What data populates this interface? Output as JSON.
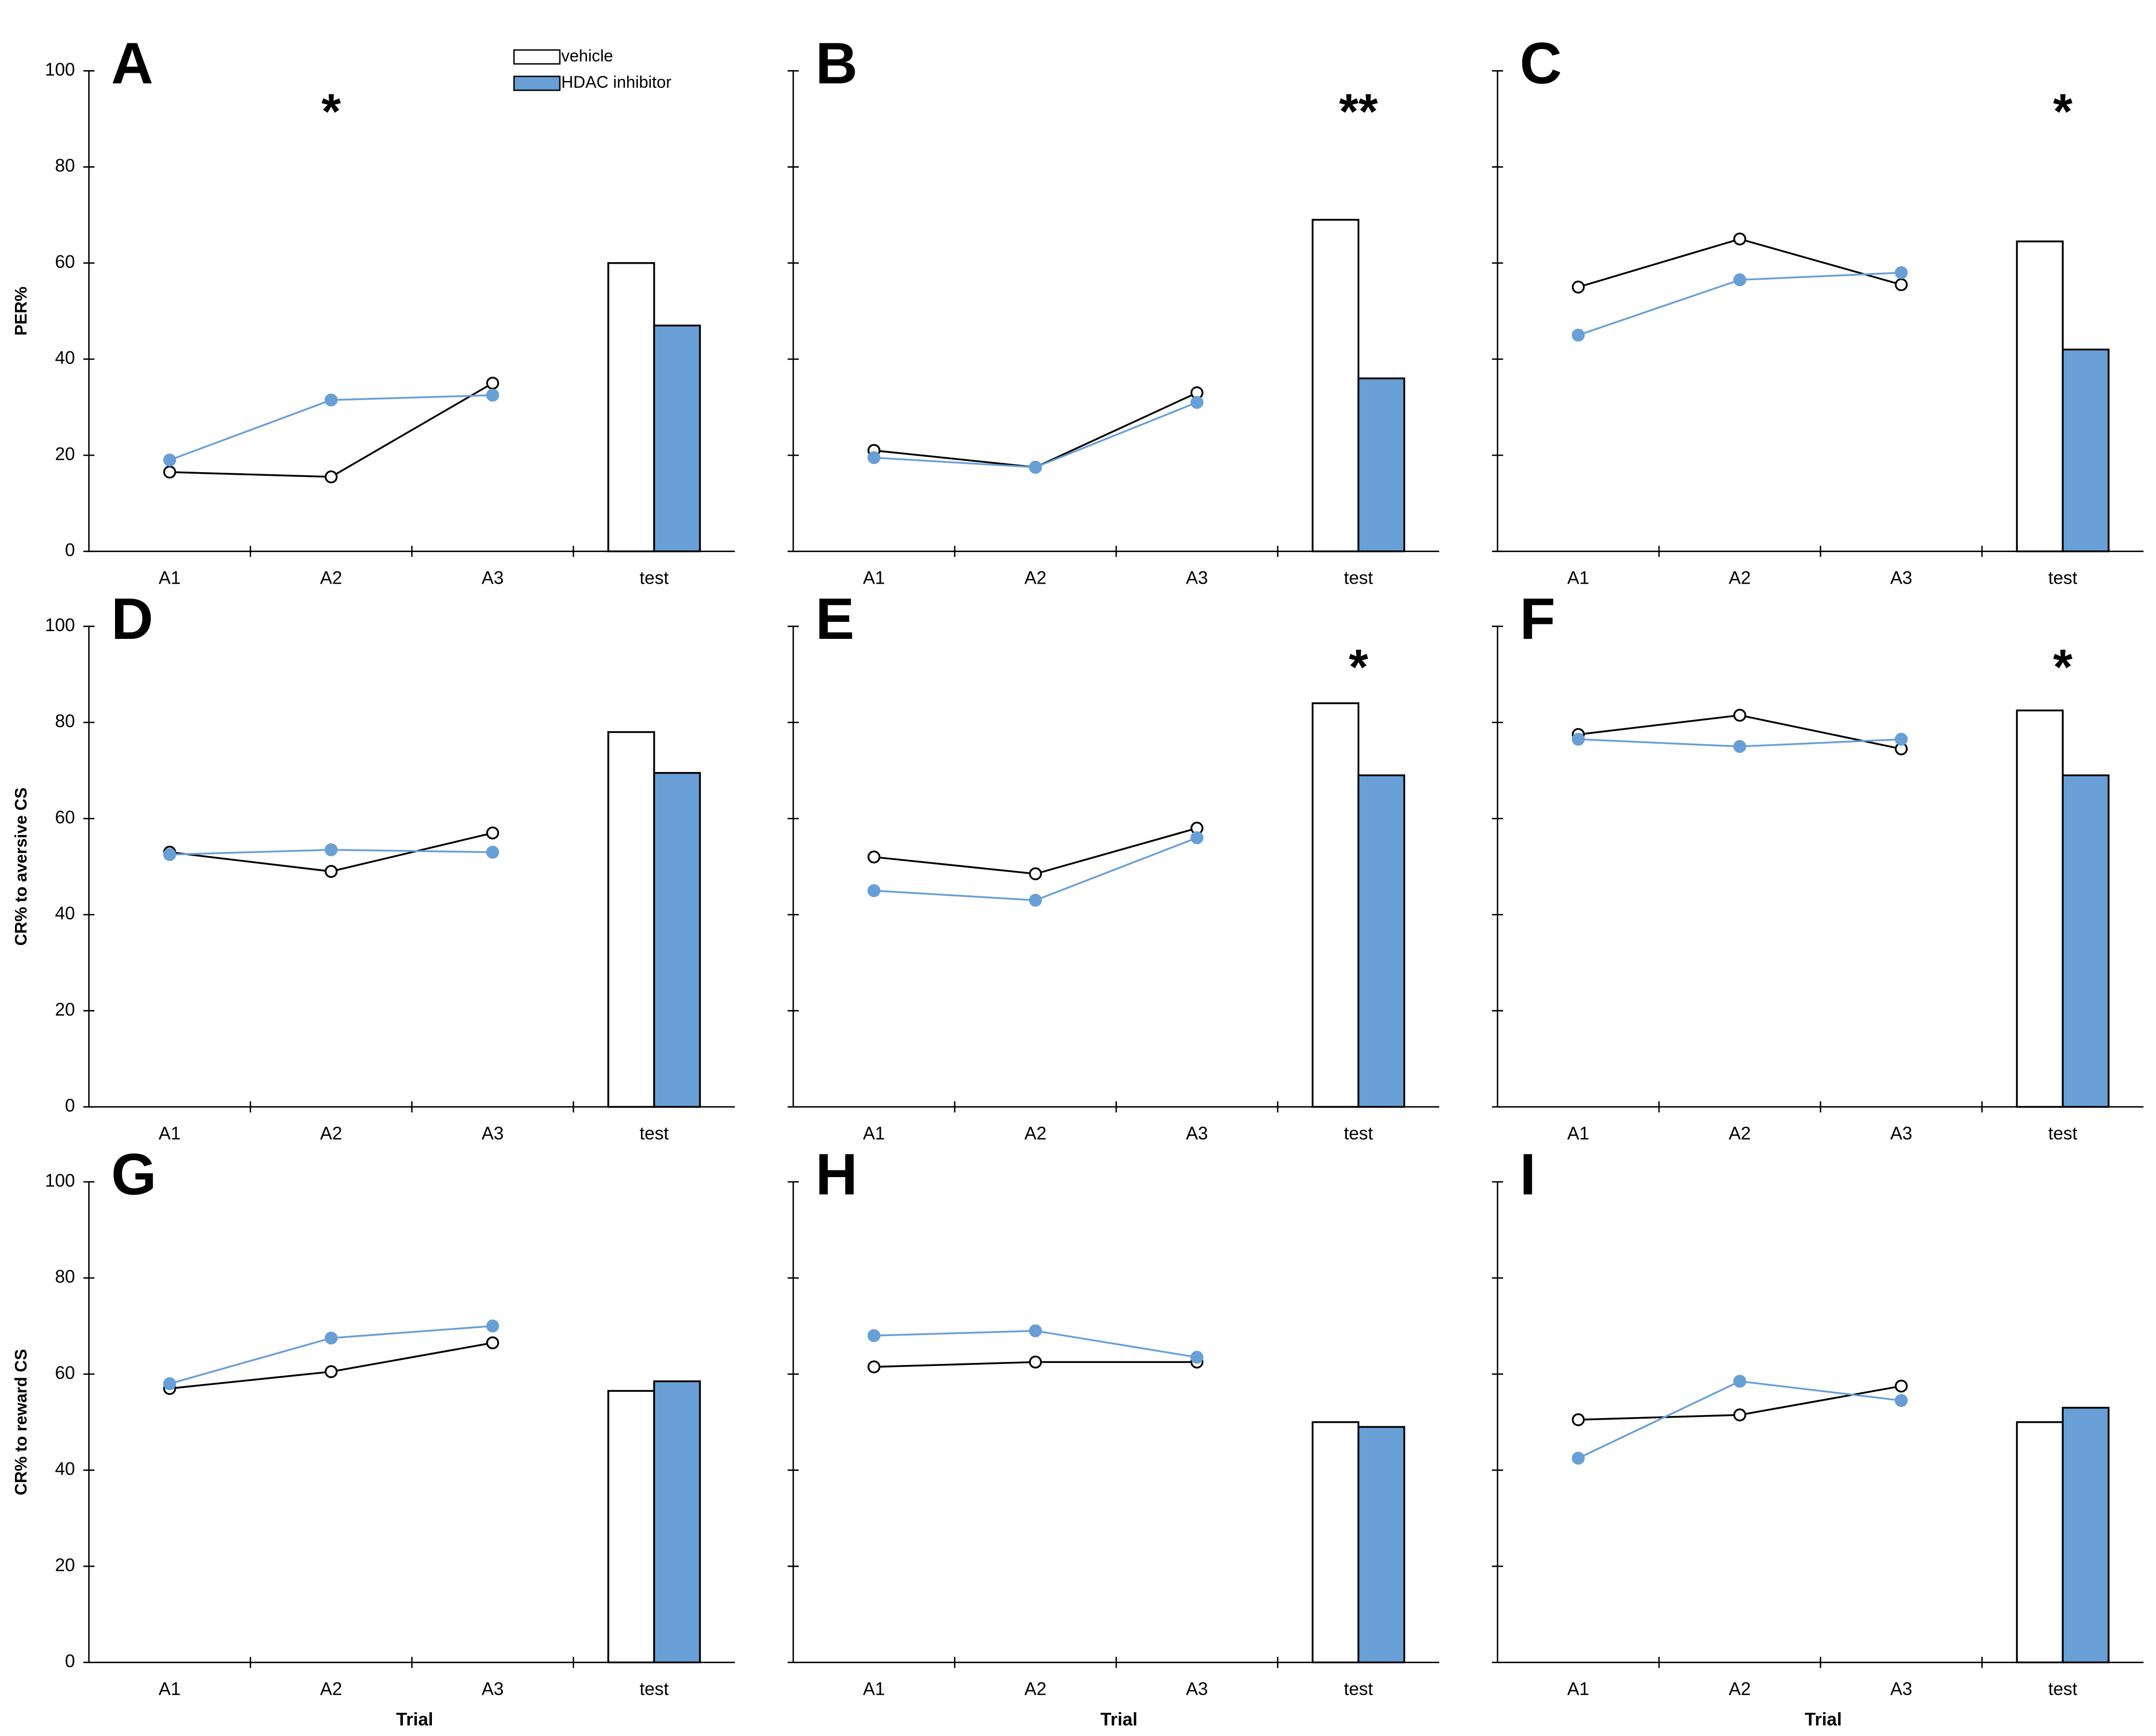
{
  "chart_data": [
    {
      "type": "combo",
      "panel_label": "A",
      "ylabel": "PER%",
      "categories": [
        "A1",
        "A2",
        "A3",
        "test"
      ],
      "ylim": [
        0,
        100
      ],
      "yticks": [
        0,
        20,
        40,
        60,
        80,
        100
      ],
      "show_ytick_labels": true,
      "legend": true,
      "series": [
        {
          "name": "vehicle",
          "color": "#000000",
          "values": [
            16.5,
            15.5,
            35,
            60
          ]
        },
        {
          "name": "HDAC inhibitor",
          "color": "#689fd6",
          "values": [
            19,
            31.5,
            32.5,
            47
          ]
        }
      ],
      "annotations": [
        {
          "text": "*",
          "category": "A2"
        }
      ]
    },
    {
      "type": "combo",
      "panel_label": "B",
      "categories": [
        "A1",
        "A2",
        "A3",
        "test"
      ],
      "ylim": [
        0,
        100
      ],
      "yticks": [
        0,
        20,
        40,
        60,
        80,
        100
      ],
      "show_ytick_labels": false,
      "series": [
        {
          "name": "vehicle",
          "color": "#000000",
          "values": [
            21,
            17.5,
            33,
            69
          ]
        },
        {
          "name": "HDAC inhibitor",
          "color": "#689fd6",
          "values": [
            19.5,
            17.5,
            31,
            36
          ]
        }
      ],
      "annotations": [
        {
          "text": "**",
          "category": "test"
        }
      ]
    },
    {
      "type": "combo",
      "panel_label": "C",
      "categories": [
        "A1",
        "A2",
        "A3",
        "test"
      ],
      "ylim": [
        0,
        100
      ],
      "yticks": [
        0,
        20,
        40,
        60,
        80,
        100
      ],
      "show_ytick_labels": false,
      "series": [
        {
          "name": "vehicle",
          "color": "#000000",
          "values": [
            55,
            65,
            55.5,
            64.5
          ]
        },
        {
          "name": "HDAC inhibitor",
          "color": "#689fd6",
          "values": [
            45,
            56.5,
            58,
            42
          ]
        }
      ],
      "annotations": [
        {
          "text": "*",
          "category": "test"
        }
      ]
    },
    {
      "type": "combo",
      "panel_label": "D",
      "ylabel": "CR% to aversive CS",
      "categories": [
        "A1",
        "A2",
        "A3",
        "test"
      ],
      "ylim": [
        0,
        100
      ],
      "yticks": [
        0,
        20,
        40,
        60,
        80,
        100
      ],
      "show_ytick_labels": true,
      "series": [
        {
          "name": "vehicle",
          "color": "#000000",
          "values": [
            53,
            49,
            57,
            78
          ]
        },
        {
          "name": "HDAC inhibitor",
          "color": "#689fd6",
          "values": [
            52.5,
            53.5,
            53,
            69.5
          ]
        }
      ]
    },
    {
      "type": "combo",
      "panel_label": "E",
      "categories": [
        "A1",
        "A2",
        "A3",
        "test"
      ],
      "ylim": [
        0,
        100
      ],
      "yticks": [
        0,
        20,
        40,
        60,
        80,
        100
      ],
      "show_ytick_labels": false,
      "series": [
        {
          "name": "vehicle",
          "color": "#000000",
          "values": [
            52,
            48.5,
            58,
            84
          ]
        },
        {
          "name": "HDAC inhibitor",
          "color": "#689fd6",
          "values": [
            45,
            43,
            56,
            69
          ]
        }
      ],
      "annotations": [
        {
          "text": "*",
          "category": "test"
        }
      ]
    },
    {
      "type": "combo",
      "panel_label": "F",
      "categories": [
        "A1",
        "A2",
        "A3",
        "test"
      ],
      "ylim": [
        0,
        100
      ],
      "yticks": [
        0,
        20,
        40,
        60,
        80,
        100
      ],
      "show_ytick_labels": false,
      "series": [
        {
          "name": "vehicle",
          "color": "#000000",
          "values": [
            77.5,
            81.5,
            74.5,
            82.5
          ]
        },
        {
          "name": "HDAC inhibitor",
          "color": "#689fd6",
          "values": [
            76.5,
            75,
            76.5,
            69
          ]
        }
      ],
      "annotations": [
        {
          "text": "*",
          "category": "test"
        }
      ]
    },
    {
      "type": "combo",
      "panel_label": "G",
      "ylabel": "CR% to reward CS",
      "xlabel": "Trial",
      "categories": [
        "A1",
        "A2",
        "A3",
        "test"
      ],
      "ylim": [
        0,
        100
      ],
      "yticks": [
        0,
        20,
        40,
        60,
        80,
        100
      ],
      "show_ytick_labels": true,
      "series": [
        {
          "name": "vehicle",
          "color": "#000000",
          "values": [
            57,
            60.5,
            66.5,
            56.5
          ]
        },
        {
          "name": "HDAC inhibitor",
          "color": "#689fd6",
          "values": [
            58,
            67.5,
            70,
            58.5
          ]
        }
      ]
    },
    {
      "type": "combo",
      "panel_label": "H",
      "xlabel": "Trial",
      "categories": [
        "A1",
        "A2",
        "A3",
        "test"
      ],
      "ylim": [
        0,
        100
      ],
      "yticks": [
        0,
        20,
        40,
        60,
        80,
        100
      ],
      "show_ytick_labels": false,
      "series": [
        {
          "name": "vehicle",
          "color": "#000000",
          "values": [
            61.5,
            62.5,
            62.5,
            50
          ]
        },
        {
          "name": "HDAC inhibitor",
          "color": "#689fd6",
          "values": [
            68,
            69,
            63.5,
            49
          ]
        }
      ]
    },
    {
      "type": "combo",
      "panel_label": "I",
      "xlabel": "Trial",
      "categories": [
        "A1",
        "A2",
        "A3",
        "test"
      ],
      "ylim": [
        0,
        100
      ],
      "yticks": [
        0,
        20,
        40,
        60,
        80,
        100
      ],
      "show_ytick_labels": false,
      "series": [
        {
          "name": "vehicle",
          "color": "#000000",
          "values": [
            50.5,
            51.5,
            57.5,
            50
          ]
        },
        {
          "name": "HDAC inhibitor",
          "color": "#689fd6",
          "values": [
            42.5,
            58.5,
            54.5,
            53
          ]
        }
      ]
    }
  ]
}
